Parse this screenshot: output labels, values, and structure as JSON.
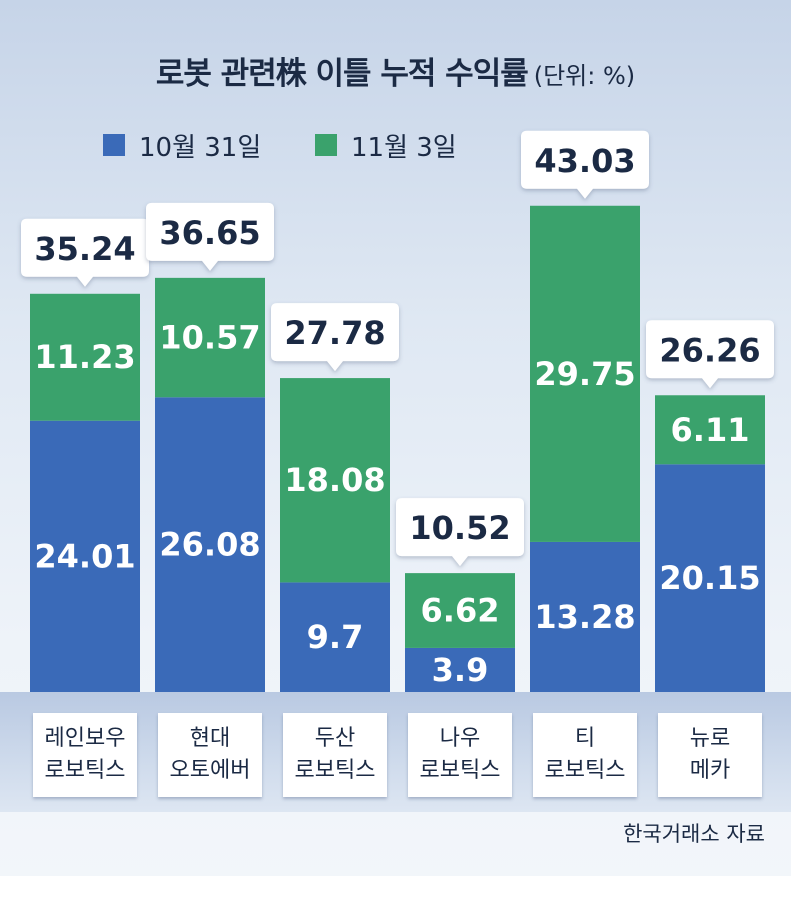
{
  "title": "로봇 관련株 이틀 누적 수익률",
  "unit": "(단위: %)",
  "source": "한국거래소 자료",
  "colors": {
    "series1": "#3a6ab8",
    "series2": "#3aa26c",
    "text": "#1b2a44"
  },
  "chart_data": {
    "type": "bar",
    "stacked": true,
    "categories": [
      [
        "레인보우",
        "로보틱스"
      ],
      [
        "현대",
        "오토에버"
      ],
      [
        "두산",
        "로보틱스"
      ],
      [
        "나우",
        "로보틱스"
      ],
      [
        "티",
        "로보틱스"
      ],
      [
        "뉴로",
        "메카"
      ]
    ],
    "series": [
      {
        "name": "10월 31일",
        "values": [
          "24.01",
          "26.08",
          "9.7",
          "3.9",
          "13.28",
          "20.15"
        ]
      },
      {
        "name": "11월 3일",
        "values": [
          "11.23",
          "10.57",
          "18.08",
          "6.62",
          "29.75",
          "6.11"
        ]
      }
    ],
    "totals": [
      "35.24",
      "36.65",
      "27.78",
      "10.52",
      "43.03",
      "26.26"
    ],
    "ylim": [
      0,
      43.03
    ],
    "legend": "top"
  }
}
